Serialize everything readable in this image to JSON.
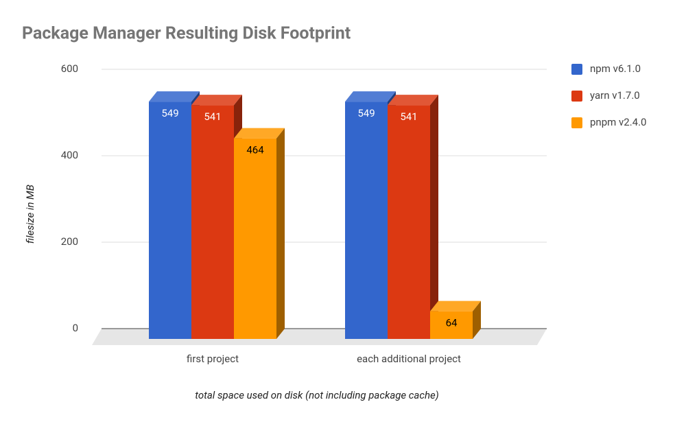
{
  "chart_data": {
    "type": "bar3d",
    "title": "Package Manager Resulting Disk Footprint",
    "x_label": "total space used on disk (not including package cache)",
    "y_label": "filesize in MB",
    "categories": [
      "first project",
      "each additional project"
    ],
    "series": [
      {
        "name": "npm v6.1.0",
        "color": "#3366cc",
        "label_color": "#ffffff",
        "values": [
          549,
          549
        ]
      },
      {
        "name": "yarn v1.7.0",
        "color": "#dc3912",
        "label_color": "#ffffff",
        "values": [
          541,
          541
        ]
      },
      {
        "name": "pnpm v2.4.0",
        "color": "#ff9900",
        "label_color": "#000000",
        "values": [
          464,
          64
        ]
      }
    ],
    "ylim": [
      0,
      600
    ],
    "yticks": [
      0,
      200,
      400,
      600
    ],
    "grid": true,
    "legend": "right"
  }
}
